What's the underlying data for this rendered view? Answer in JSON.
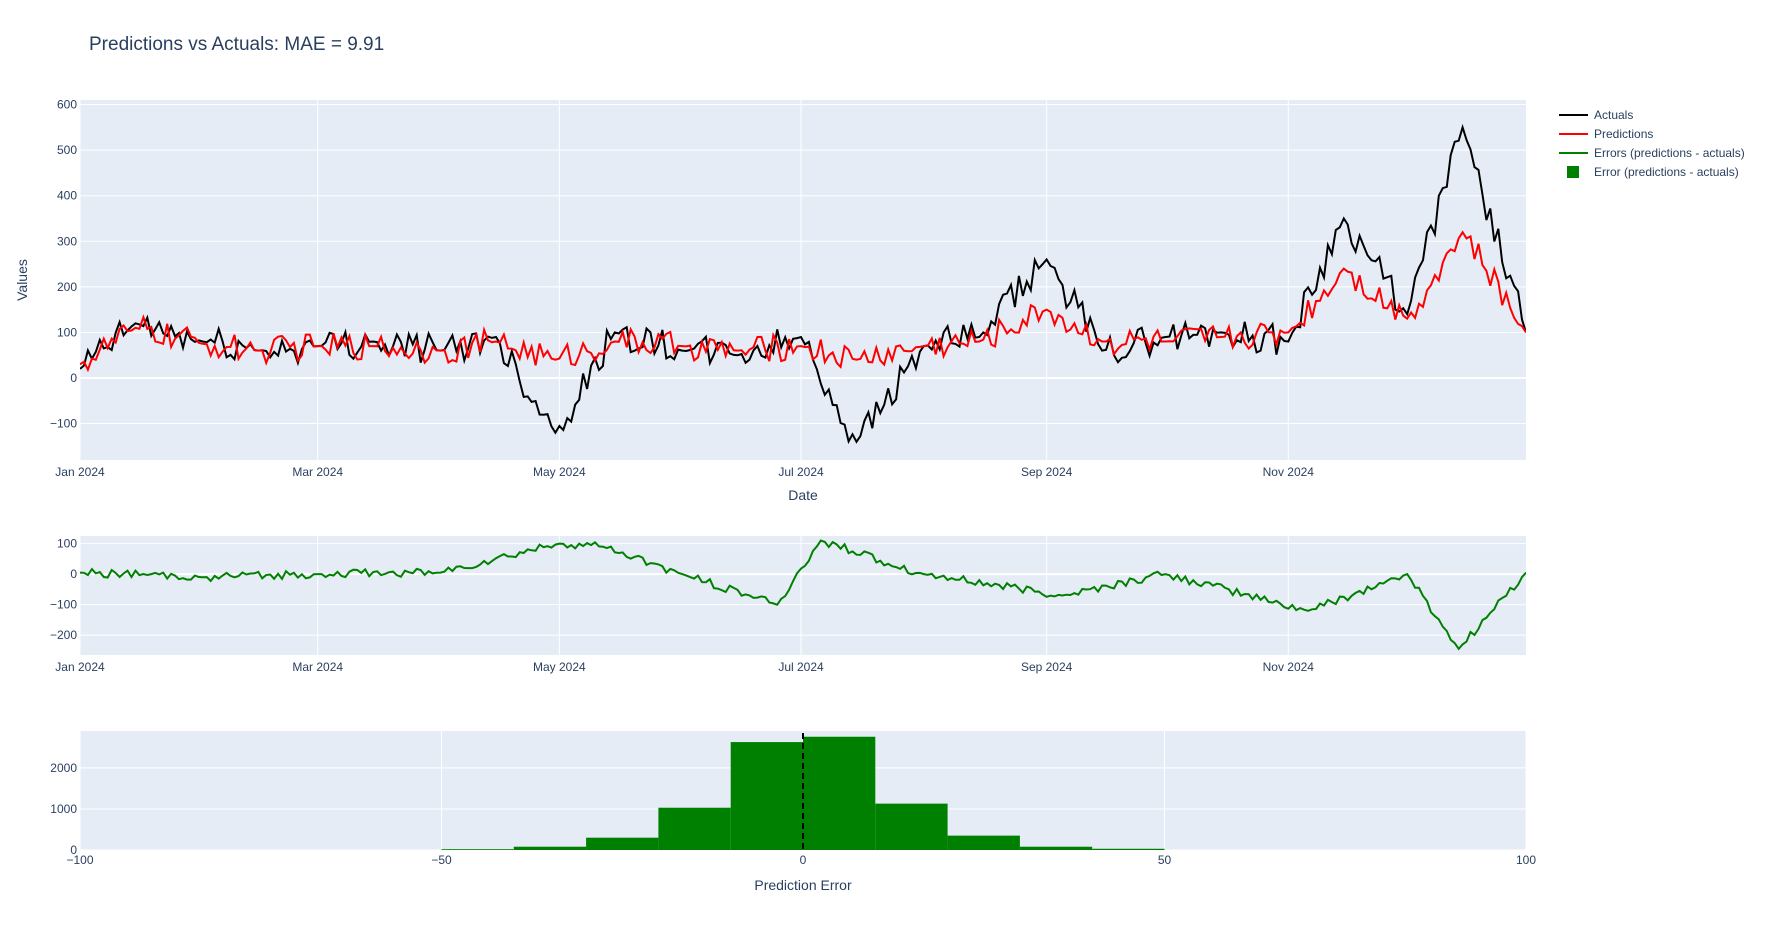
{
  "chart_data": [
    {
      "type": "line",
      "title": "Predictions vs Actuals: MAE = 9.91",
      "xlabel": "Date",
      "ylabel": "Values",
      "ylim": [
        -180,
        610
      ],
      "xrange": [
        "2024-01-01",
        "2024-12-31"
      ],
      "x_ticks": [
        "2024-01-01",
        "2024-03-01",
        "2024-05-01",
        "2024-07-01",
        "2024-09-01",
        "2024-11-01"
      ],
      "x_tick_labels": [
        "Jan 2024",
        "Mar 2024",
        "May 2024",
        "Jul 2024",
        "Sep 2024",
        "Nov 2024"
      ],
      "y_ticks": [
        -100,
        0,
        100,
        200,
        300,
        400,
        500,
        600
      ],
      "y_tick_labels": [
        "−100",
        "0",
        "100",
        "200",
        "300",
        "400",
        "500",
        "600"
      ],
      "grid": true,
      "series": [
        {
          "name": "Actuals",
          "color": "#000000",
          "x": [
            "2024-01-01",
            "2024-01-15",
            "2024-02-01",
            "2024-02-15",
            "2024-03-01",
            "2024-03-15",
            "2024-04-01",
            "2024-04-15",
            "2024-04-30",
            "2024-05-15",
            "2024-06-01",
            "2024-06-15",
            "2024-07-01",
            "2024-07-15",
            "2024-08-01",
            "2024-08-15",
            "2024-09-01",
            "2024-09-15",
            "2024-10-01",
            "2024-10-15",
            "2024-11-01",
            "2024-11-15",
            "2024-12-01",
            "2024-12-15",
            "2024-12-31"
          ],
          "values": [
            20,
            120,
            80,
            60,
            70,
            80,
            60,
            90,
            -120,
            100,
            60,
            50,
            90,
            -140,
            70,
            90,
            260,
            60,
            90,
            100,
            80,
            350,
            140,
            550,
            100
          ]
        },
        {
          "name": "Predictions",
          "color": "#ff0000",
          "x": [
            "2024-01-01",
            "2024-01-15",
            "2024-02-01",
            "2024-02-15",
            "2024-03-01",
            "2024-03-15",
            "2024-04-01",
            "2024-04-15",
            "2024-04-30",
            "2024-05-15",
            "2024-06-01",
            "2024-06-15",
            "2024-07-01",
            "2024-07-15",
            "2024-08-01",
            "2024-08-15",
            "2024-09-01",
            "2024-09-15",
            "2024-10-01",
            "2024-10-15",
            "2024-11-01",
            "2024-11-15",
            "2024-12-01",
            "2024-12-15",
            "2024-12-31"
          ],
          "values": [
            30,
            110,
            75,
            60,
            70,
            70,
            60,
            80,
            40,
            80,
            70,
            60,
            70,
            40,
            70,
            80,
            150,
            80,
            80,
            90,
            100,
            240,
            130,
            320,
            100
          ]
        }
      ]
    },
    {
      "type": "line",
      "ylim": [
        -265,
        125
      ],
      "xrange": [
        "2024-01-01",
        "2024-12-31"
      ],
      "x_ticks": [
        "2024-01-01",
        "2024-03-01",
        "2024-05-01",
        "2024-07-01",
        "2024-09-01",
        "2024-11-01"
      ],
      "x_tick_labels": [
        "Jan 2024",
        "Mar 2024",
        "May 2024",
        "Jul 2024",
        "Sep 2024",
        "Nov 2024"
      ],
      "y_ticks": [
        -200,
        -100,
        0,
        100
      ],
      "y_tick_labels": [
        "−200",
        "−100",
        "0",
        "100"
      ],
      "grid": true,
      "series": [
        {
          "name": "Errors (predictions - actuals)",
          "color": "#008000",
          "x": [
            "2024-01-01",
            "2024-02-01",
            "2024-03-01",
            "2024-04-01",
            "2024-05-01",
            "2024-05-12",
            "2024-06-01",
            "2024-06-25",
            "2024-07-06",
            "2024-08-01",
            "2024-09-05",
            "2024-10-01",
            "2024-11-06",
            "2024-12-01",
            "2024-12-14",
            "2024-12-31"
          ],
          "values": [
            5,
            -10,
            0,
            5,
            100,
            90,
            0,
            -100,
            110,
            0,
            -70,
            0,
            -120,
            0,
            -245,
            5
          ]
        }
      ]
    },
    {
      "type": "bar",
      "xlabel": "Prediction Error",
      "xlim": [
        -100,
        100
      ],
      "ylim": [
        0,
        2900
      ],
      "x_ticks": [
        -100,
        -50,
        0,
        50,
        100
      ],
      "x_tick_labels": [
        "−100",
        "−50",
        "0",
        "50",
        "100"
      ],
      "y_ticks": [
        0,
        1000,
        2000
      ],
      "y_tick_labels": [
        "0",
        "1000",
        "2000"
      ],
      "grid": true,
      "vline_x": 0,
      "series": [
        {
          "name": "Error (predictions - actuals)",
          "color": "#008000",
          "bin_starts": [
            -50,
            -40,
            -30,
            -20,
            -10,
            0,
            10,
            20,
            30,
            40
          ],
          "bin_width": 10,
          "values": [
            20,
            80,
            300,
            1030,
            2630,
            2760,
            1130,
            350,
            80,
            30
          ]
        }
      ]
    }
  ]
}
